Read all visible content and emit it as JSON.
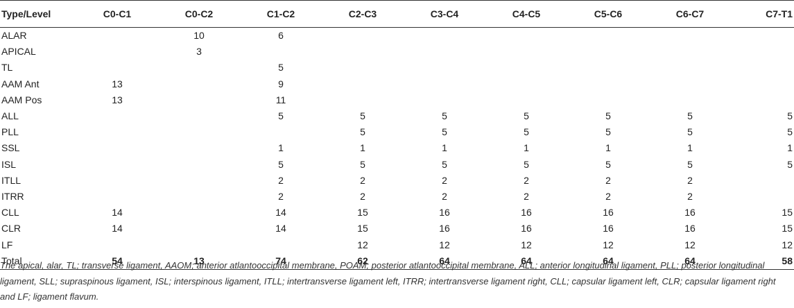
{
  "header": [
    "Type/Level",
    "C0-C1",
    "C0-C2",
    "C1-C2",
    "C2-C3",
    "C3-C4",
    "C4-C5",
    "C5-C6",
    "C6-C7",
    "C7-T1"
  ],
  "rows": [
    [
      "ALAR",
      "",
      "10",
      "6",
      "",
      "",
      "",
      "",
      "",
      ""
    ],
    [
      "APICAL",
      "",
      "3",
      "",
      "",
      "",
      "",
      "",
      "",
      ""
    ],
    [
      "TL",
      "",
      "",
      "5",
      "",
      "",
      "",
      "",
      "",
      ""
    ],
    [
      "AAM Ant",
      "13",
      "",
      "9",
      "",
      "",
      "",
      "",
      "",
      ""
    ],
    [
      "AAM Pos",
      "13",
      "",
      "11",
      "",
      "",
      "",
      "",
      "",
      ""
    ],
    [
      "ALL",
      "",
      "",
      "5",
      "5",
      "5",
      "5",
      "5",
      "5",
      "5"
    ],
    [
      "PLL",
      "",
      "",
      "",
      "5",
      "5",
      "5",
      "5",
      "5",
      "5"
    ],
    [
      "SSL",
      "",
      "",
      "1",
      "1",
      "1",
      "1",
      "1",
      "1",
      "1"
    ],
    [
      "ISL",
      "",
      "",
      "5",
      "5",
      "5",
      "5",
      "5",
      "5",
      "5"
    ],
    [
      "ITLL",
      "",
      "",
      "2",
      "2",
      "2",
      "2",
      "2",
      "2",
      ""
    ],
    [
      "ITRR",
      "",
      "",
      "2",
      "2",
      "2",
      "2",
      "2",
      "2",
      ""
    ],
    [
      "CLL",
      "14",
      "",
      "14",
      "15",
      "16",
      "16",
      "16",
      "16",
      "15"
    ],
    [
      "CLR",
      "14",
      "",
      "14",
      "15",
      "16",
      "16",
      "16",
      "16",
      "15"
    ],
    [
      "LF",
      "",
      "",
      "",
      "12",
      "12",
      "12",
      "12",
      "12",
      "12"
    ]
  ],
  "total": [
    "Total",
    "54",
    "13",
    "74",
    "62",
    "64",
    "64",
    "64",
    "64",
    "58"
  ],
  "note": "The apical, alar, TL; transverse ligament, AAOM; anterior atlantooccipital membrane, POAM; posterior atlantooccipital membrane, ALL; anterior longitudinal ligament, PLL; posterior longitudinal ligament, SLL; supraspinous ligament, ISL; interspinous ligament, ITLL; intertransverse ligament left, ITRR; intertransverse ligament right, CLL; capsular ligament left, CLR; capsular ligament right and LF; ligament flavum."
}
